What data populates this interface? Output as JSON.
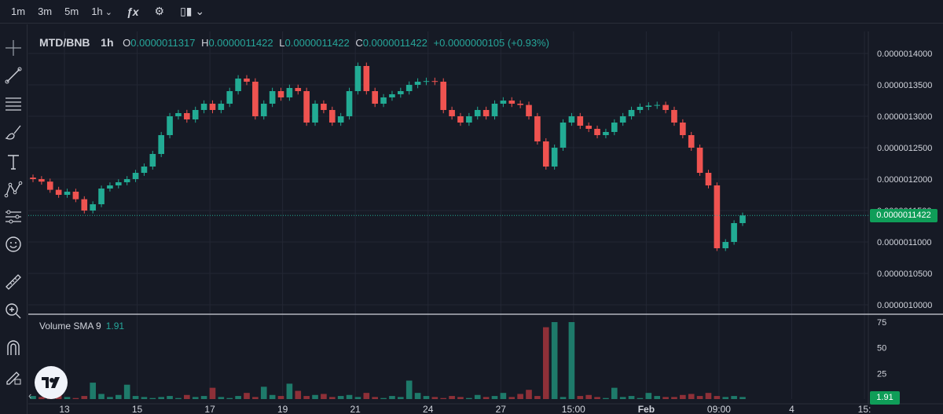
{
  "toolbar": {
    "timeframes": [
      "1m",
      "3m",
      "5m",
      "1h"
    ],
    "icons": [
      "fx-indicators-icon",
      "settings-gear-icon",
      "candlestick-type-icon"
    ]
  },
  "sidebar": {
    "tools": [
      "crosshair-icon",
      "trendline-icon",
      "fib-retracement-icon",
      "brush-icon",
      "text-icon",
      "pattern-icon",
      "measure-icon",
      "emoji-icon",
      "ruler-icon",
      "zoom-in-icon",
      "magnet-icon",
      "lock-draw-icon"
    ]
  },
  "legend": {
    "symbol": "MTD/BNB",
    "interval": "1h",
    "o_label": "O",
    "o_value": "0.0000011317",
    "h_label": "H",
    "h_value": "0.0000011422",
    "l_label": "L",
    "l_value": "0.0000011422",
    "c_label": "C",
    "c_value": "0.0000011422",
    "change": "+0.0000000105 (+0.93%)"
  },
  "volume_legend": {
    "name": "Volume SMA 9",
    "value": "1.91"
  },
  "last_price_tag": "0.0000011422",
  "volume_tag": "1.91",
  "colors": {
    "background": "#161a25",
    "up": "#26a69a",
    "down": "#ef5350",
    "up_bright": "#22ab94",
    "grid": "#232734",
    "text": "#b2b5be"
  },
  "chart_data": [
    {
      "type": "candlestick",
      "title": "MTD/BNB 1h",
      "price_axis_ticks": [
        "0.0000014000",
        "0.0000013500",
        "0.0000013000",
        "0.0000012500",
        "0.0000012000",
        "0.0000011500",
        "0.0000011000",
        "0.0000010500",
        "0.0000010000"
      ],
      "time_axis_ticks": [
        "13",
        "15",
        "17",
        "19",
        "21",
        "24",
        "27",
        "15:00",
        "Feb",
        "09:00",
        "4",
        "15:"
      ],
      "ylim": [
        9.9e-07,
        1.41e-06
      ],
      "last_price": 1.1422e-06,
      "series": [
        {
          "name": "MTD/BNB",
          "close_path": [
            1.2e-06,
            1.196e-06,
            1.183e-06,
            1.175e-06,
            1.18e-06,
            1.168e-06,
            1.15e-06,
            1.16e-06,
            1.185e-06,
            1.19e-06,
            1.195e-06,
            1.2e-06,
            1.21e-06,
            1.22e-06,
            1.24e-06,
            1.27e-06,
            1.3e-06,
            1.305e-06,
            1.295e-06,
            1.31e-06,
            1.32e-06,
            1.31e-06,
            1.32e-06,
            1.34e-06,
            1.36e-06,
            1.355e-06,
            1.3e-06,
            1.32e-06,
            1.34e-06,
            1.33e-06,
            1.345e-06,
            1.34e-06,
            1.29e-06,
            1.32e-06,
            1.31e-06,
            1.29e-06,
            1.3e-06,
            1.34e-06,
            1.38e-06,
            1.34e-06,
            1.32e-06,
            1.33e-06,
            1.335e-06,
            1.34e-06,
            1.35e-06,
            1.355e-06,
            1.356e-06,
            1.355e-06,
            1.31e-06,
            1.3e-06,
            1.29e-06,
            1.3e-06,
            1.31e-06,
            1.3e-06,
            1.32e-06,
            1.325e-06,
            1.32e-06,
            1.318e-06,
            1.3e-06,
            1.26e-06,
            1.22e-06,
            1.25e-06,
            1.29e-06,
            1.3e-06,
            1.285e-06,
            1.28e-06,
            1.27e-06,
            1.275e-06,
            1.29e-06,
            1.3e-06,
            1.31e-06,
            1.315e-06,
            1.317e-06,
            1.318e-06,
            1.31e-06,
            1.29e-06,
            1.27e-06,
            1.25e-06,
            1.21e-06,
            1.19e-06,
            1.09e-06,
            1.1e-06,
            1.13e-06,
            1.1422e-06
          ]
        }
      ]
    },
    {
      "type": "bar",
      "title": "Volume SMA 9",
      "ylim": [
        0,
        75
      ],
      "y_ticks": [
        "75",
        "50",
        "25"
      ],
      "values": [
        3,
        2,
        1,
        4,
        2,
        1,
        3,
        16,
        5,
        2,
        4,
        14,
        3,
        2,
        1,
        2,
        3,
        1,
        4,
        2,
        3,
        11,
        2,
        1,
        3,
        6,
        2,
        12,
        4,
        3,
        15,
        8,
        3,
        4,
        5,
        2,
        3,
        4,
        2,
        6,
        2,
        1,
        3,
        2,
        18,
        6,
        3,
        2,
        1,
        3,
        2,
        1,
        4,
        2,
        3,
        6,
        2,
        5,
        9,
        3,
        70,
        75,
        2,
        75,
        3,
        4,
        2,
        1,
        11,
        2,
        3,
        1,
        6,
        3,
        2,
        2,
        4,
        5,
        3,
        6,
        3,
        2,
        3,
        2
      ]
    }
  ]
}
